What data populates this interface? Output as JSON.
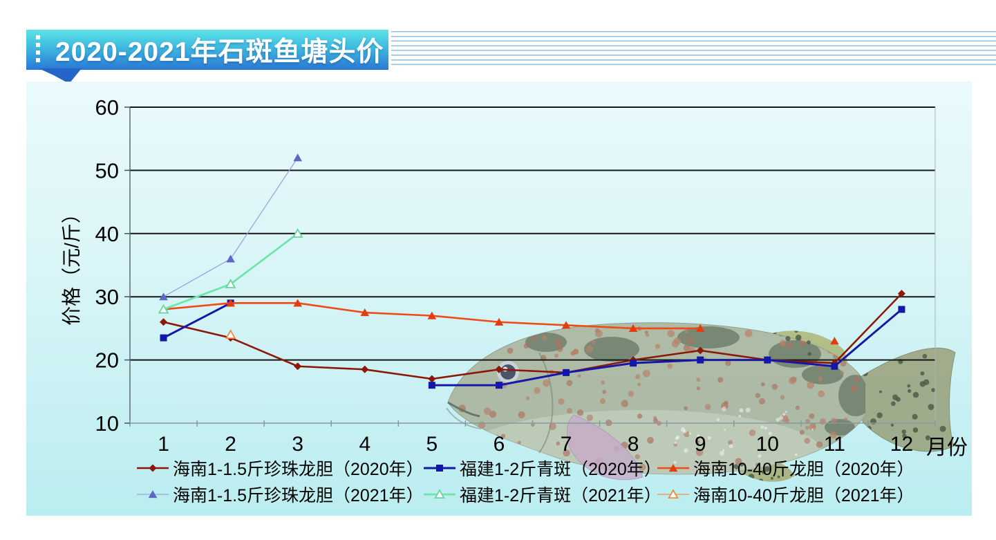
{
  "page": {
    "background": "#FFFFFF"
  },
  "header": {
    "title": "2020-2021年石斑鱼塘头价",
    "banner_gradient": [
      "#5BE3E8",
      "#2A77D4"
    ],
    "banner_tail_color": "#2565C8",
    "accent_dash_color": "#FFFFFF",
    "pinstripe_color": "#8FBEDF"
  },
  "panel": {
    "bg_top": "#EAFAFC",
    "bg_bottom": "#BAEDF0"
  },
  "decoration": {
    "fish": "semi-transparent grouper fish photo overlaid on right half of plot area"
  },
  "chart_data": {
    "type": "line",
    "title": "2020-2021年石斑鱼塘头价",
    "categories": [
      1,
      2,
      3,
      4,
      5,
      6,
      7,
      8,
      9,
      10,
      11,
      12
    ],
    "xlabel": "月份",
    "ylabel": "价格（元/斤）",
    "ylim": [
      10,
      60
    ],
    "yticks": [
      10,
      20,
      30,
      40,
      50,
      60
    ],
    "grid": "horizontal",
    "grid_color": "#161616",
    "legend_position": "bottom-two-rows",
    "series": [
      {
        "name": "海南1-1.5斤珍珠龙胆（2020年）",
        "color": "#8B1808",
        "marker": "diamond",
        "marker_fill": "filled",
        "marker_color": "#8B1808",
        "line_width": 2.6,
        "values": [
          26,
          23.5,
          19,
          18.5,
          17,
          18.5,
          18,
          20,
          21.5,
          20,
          19.5,
          30.5
        ]
      },
      {
        "name": "福建1-2斤青斑（2020年）",
        "color": "#1518A6",
        "marker": "square",
        "marker_fill": "filled",
        "marker_color": "#1518A6",
        "line_width": 3,
        "values": [
          23.5,
          29,
          null,
          null,
          16,
          16,
          18,
          19.5,
          20,
          20,
          19,
          28
        ]
      },
      {
        "name": "海南10-40斤龙胆（2020年）",
        "color": "#F04B14",
        "marker": "triangle",
        "marker_fill": "filled",
        "marker_color": "#E23D0E",
        "line_width": 2.6,
        "values": [
          28,
          29,
          29,
          27.5,
          27,
          26,
          25.5,
          25,
          25,
          null,
          23,
          null
        ]
      },
      {
        "name": "海南1-1.5斤珍珠龙胆（2021年）",
        "color": "#97A3DF",
        "marker": "triangle",
        "marker_fill": "filled",
        "marker_color": "#5A68C8",
        "line_width": 1.3,
        "values": [
          30,
          36,
          52,
          null,
          null,
          null,
          null,
          null,
          null,
          null,
          null,
          null
        ]
      },
      {
        "name": "福建1-2斤青斑（2021年）",
        "color": "#6FE5AC",
        "marker": "triangle",
        "marker_fill": "open",
        "marker_color": "#5FD99C",
        "line_width": 2.8,
        "values": [
          28,
          32,
          40,
          null,
          null,
          null,
          null,
          null,
          null,
          null,
          null,
          null
        ]
      },
      {
        "name": "海南10-40斤龙胆（2021年）",
        "color": "#F19B63",
        "marker": "triangle",
        "marker_fill": "open",
        "marker_color": "#ED8A3F",
        "line_width": 1.5,
        "values": [
          null,
          24,
          null,
          null,
          null,
          null,
          null,
          null,
          null,
          null,
          null,
          null
        ]
      }
    ]
  }
}
